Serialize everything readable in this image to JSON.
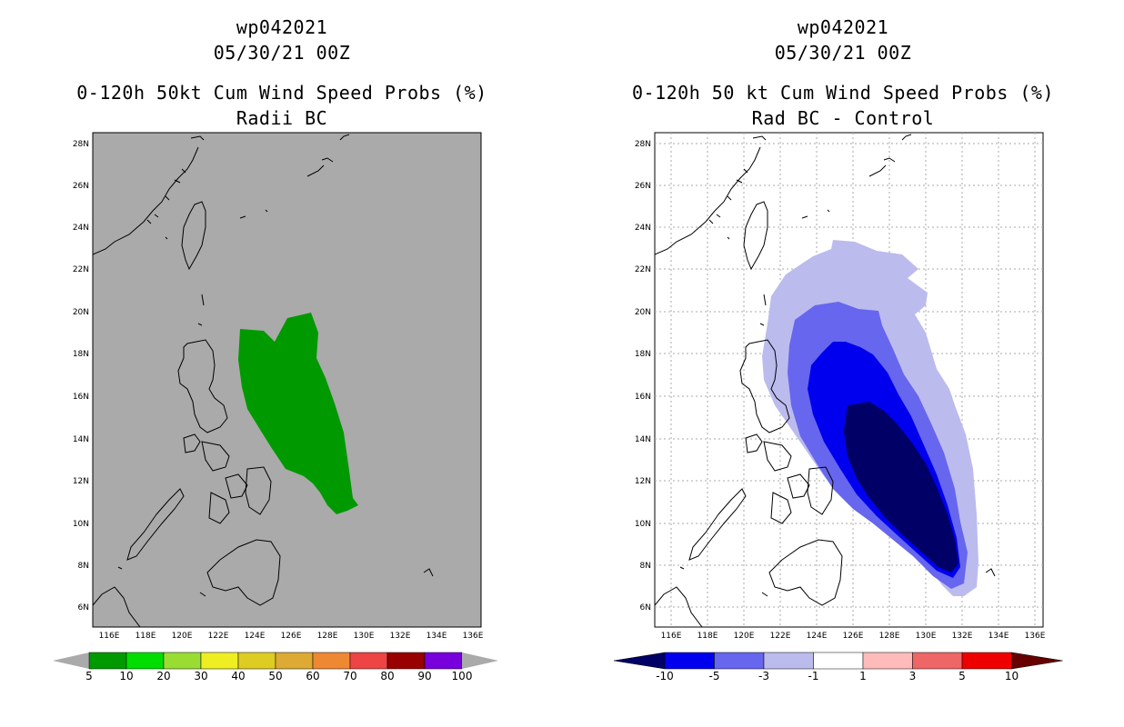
{
  "left": {
    "storm_id": "wp042021",
    "datetime": "05/30/21 00Z",
    "title": "0-120h 50kt Cum Wind Speed Probs (%)",
    "subtitle": "Radii BC",
    "background_color": "#aaaaaa",
    "colorbar": {
      "labels": [
        "5",
        "10",
        "20",
        "30",
        "40",
        "50",
        "60",
        "70",
        "80",
        "90",
        "100"
      ],
      "colors": [
        "#009900",
        "#00dd00",
        "#99dd33",
        "#eeee22",
        "#ddcc22",
        "#ddaa33",
        "#ee8833",
        "#ee4444",
        "#990000",
        "#7700dd"
      ]
    }
  },
  "right": {
    "storm_id": "wp042021",
    "datetime": "05/30/21 00Z",
    "title": "0-120h 50 kt Cum Wind Speed Probs (%)",
    "subtitle": "Rad BC - Control",
    "background_color": "#ffffff",
    "colorbar": {
      "labels": [
        "-10",
        "-5",
        "-3",
        "-1",
        "1",
        "3",
        "5",
        "10"
      ],
      "colors": [
        "#0000ee",
        "#6666ee",
        "#bbbbee",
        "#ffffff",
        "#ffbbbb",
        "#ee6666",
        "#ee0000"
      ],
      "end_low": "#000066",
      "end_high": "#660000"
    }
  },
  "axes": {
    "x_labels": [
      "116E",
      "118E",
      "120E",
      "122E",
      "124E",
      "126E",
      "128E",
      "130E",
      "132E",
      "134E",
      "136E"
    ],
    "y_labels": [
      "28N",
      "26N",
      "24N",
      "22N",
      "20N",
      "18N",
      "16N",
      "14N",
      "12N",
      "10N",
      "8N",
      "6N"
    ]
  }
}
